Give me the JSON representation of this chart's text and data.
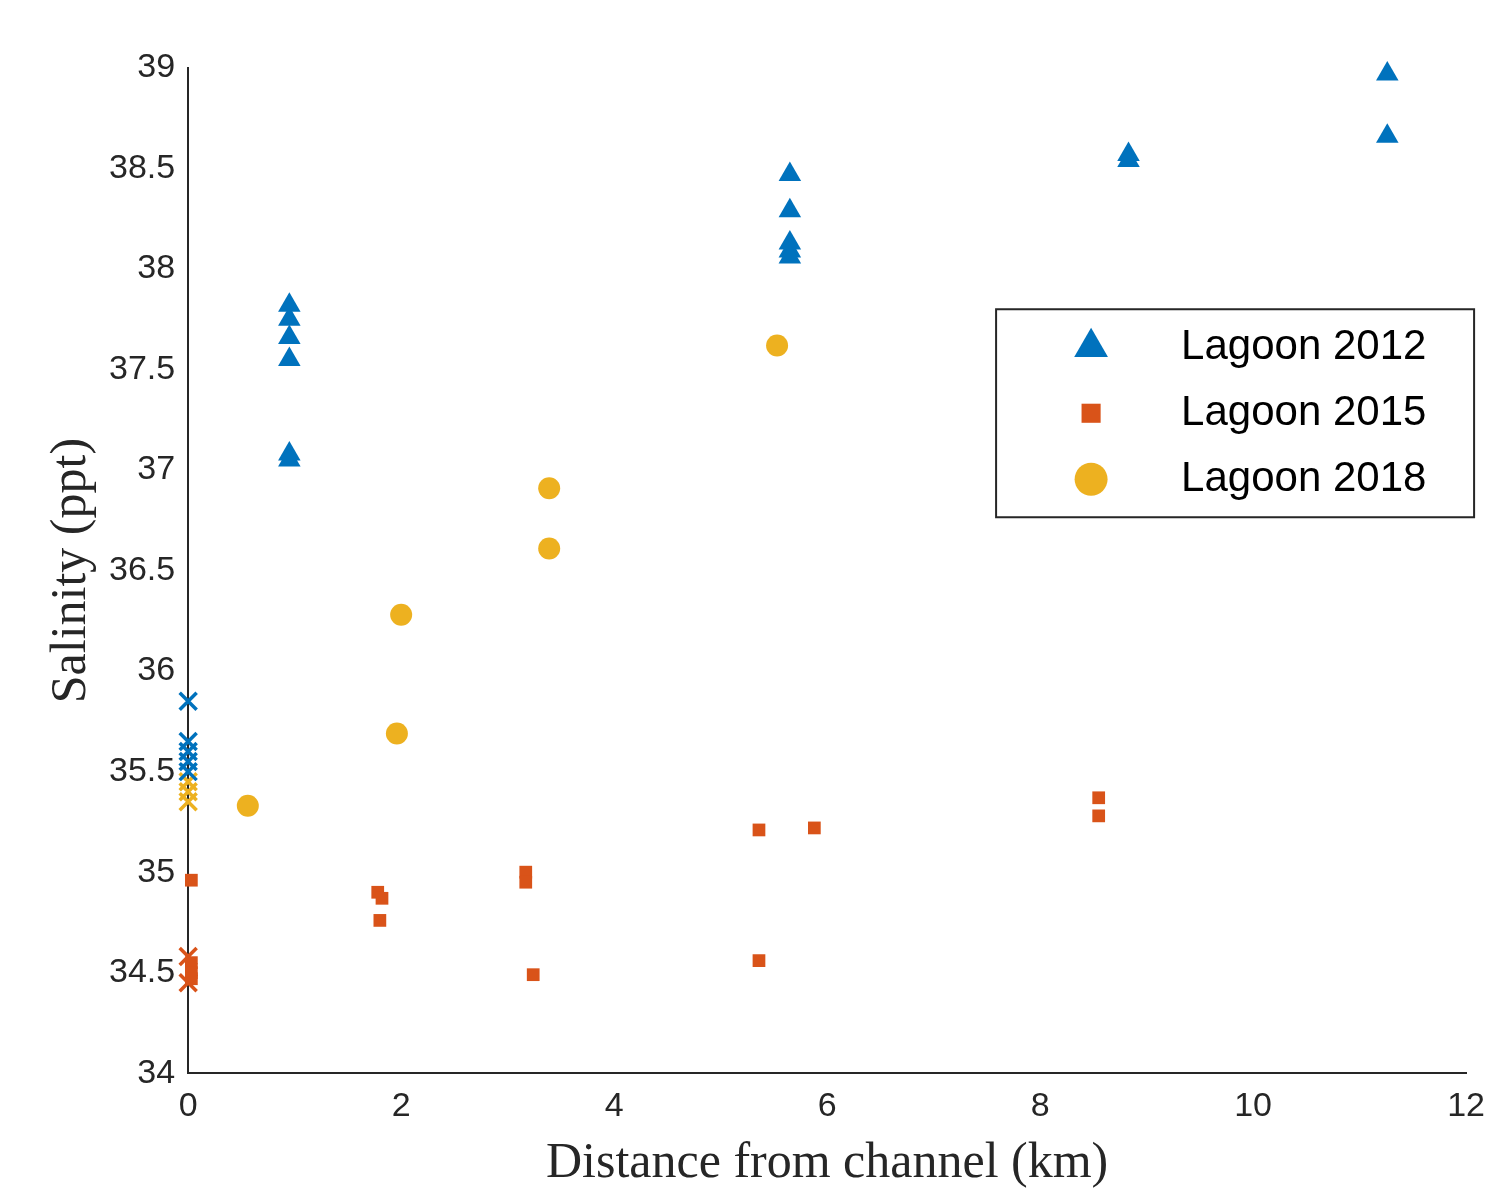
{
  "chart_data": {
    "type": "scatter",
    "xlabel": "Distance from channel (km)",
    "ylabel": "Salinity (ppt)",
    "xlim": [
      0,
      12
    ],
    "xticks": [
      0,
      2,
      4,
      6,
      8,
      10,
      12
    ],
    "ylim": [
      34,
      39
    ],
    "yticks": [
      34,
      34.5,
      35,
      35.5,
      36,
      36.5,
      37,
      37.5,
      38,
      38.5,
      39
    ],
    "grid": false,
    "legend": "right",
    "series": [
      {
        "name": "Lagoon 2012",
        "color": "#0072bd",
        "marker": "triangle",
        "x": [
          0.95,
          0.95,
          0.95,
          0.95,
          0.95,
          0.95,
          5.65,
          5.65,
          5.65,
          5.65,
          5.65,
          8.83,
          8.83,
          11.26,
          11.26
        ],
        "values": [
          37.82,
          37.75,
          37.66,
          37.55,
          37.08,
          37.05,
          38.47,
          38.29,
          38.13,
          38.09,
          38.06,
          38.57,
          38.54,
          38.97,
          38.66
        ]
      },
      {
        "name": "Lagoon 2015",
        "color": "#d95319",
        "marker": "square",
        "x": [
          0.03,
          0.03,
          0.03,
          0.03,
          1.78,
          1.82,
          1.8,
          3.17,
          3.17,
          3.24,
          5.36,
          5.88,
          5.36,
          8.55,
          8.55
        ],
        "values": [
          34.96,
          34.55,
          34.5,
          34.47,
          34.9,
          34.87,
          34.76,
          35.0,
          34.95,
          34.49,
          35.21,
          35.22,
          34.56,
          35.37,
          35.28
        ]
      },
      {
        "name": "Lagoon 2018",
        "color": "#edb120",
        "marker": "circle",
        "x": [
          0.56,
          1.96,
          2.0,
          3.39,
          3.39,
          5.53
        ],
        "values": [
          35.33,
          35.69,
          36.28,
          36.91,
          36.61,
          37.62
        ]
      },
      {
        "color": "#0072bd",
        "marker": "cross",
        "x": [
          0,
          0,
          0,
          0,
          0
        ],
        "values": [
          35.85,
          35.65,
          35.6,
          35.55,
          35.5
        ]
      },
      {
        "color": "#edb120",
        "marker": "cross",
        "x": [
          0,
          0,
          0
        ],
        "values": [
          35.45,
          35.4,
          35.35
        ]
      },
      {
        "color": "#d95319",
        "marker": "cross",
        "x": [
          0,
          0
        ],
        "values": [
          34.58,
          34.45
        ]
      }
    ]
  }
}
